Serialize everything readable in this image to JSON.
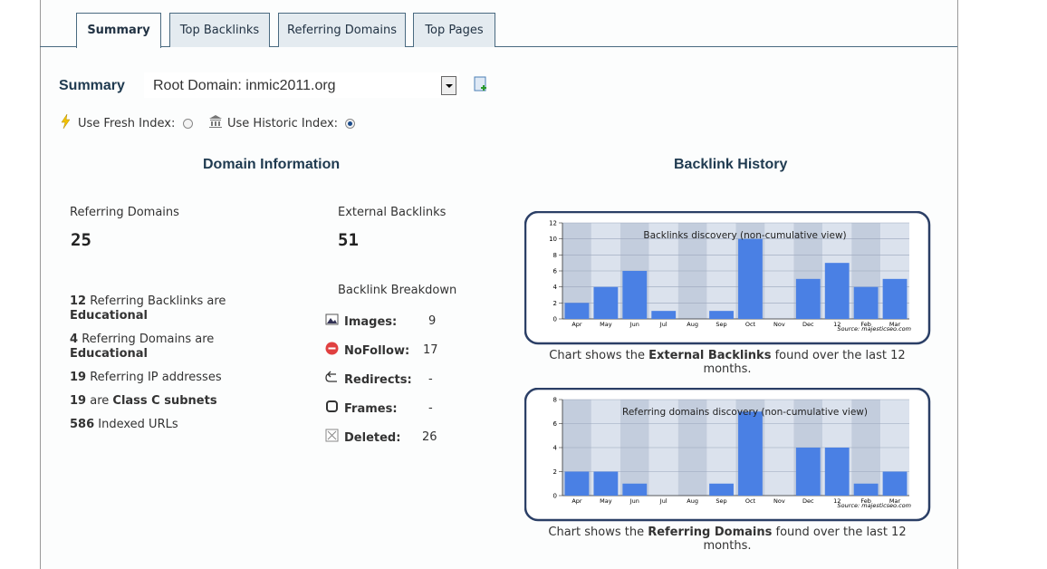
{
  "tabs": [
    "Summary",
    "Top Backlinks",
    "Referring Domains",
    "Top Pages"
  ],
  "summary_label": "Summary",
  "select": "Root Domain: inmic2011.org",
  "index_options": [
    "Use Fresh Index:",
    "Use Historic Index:"
  ],
  "domain_info": {
    "heading": "Domain Information",
    "referring_domains": {
      "label": "Referring Domains",
      "value": 25
    },
    "external_backlinks": {
      "label": "External Backlinks",
      "value": 51
    },
    "stats": [
      {
        "count": 12,
        "text": "Referring Backlinks are",
        "bold": "Educational"
      },
      {
        "count": 4,
        "text": "Referring Domains are",
        "bold": "Educational"
      },
      {
        "count": 19,
        "text": "Referring IP addresses"
      },
      {
        "count": 19,
        "text": "are",
        "bold": "Class C subnets"
      },
      {
        "count": 586,
        "text": "Indexed URLs"
      }
    ],
    "breakdown_heading": "Backlink Breakdown",
    "breakdown": [
      {
        "label": "Images:",
        "value": 9
      },
      {
        "label": "NoFollow:",
        "value": 17
      },
      {
        "label": "Redirects:",
        "value": "-"
      },
      {
        "label": "Frames:",
        "value": "-"
      },
      {
        "label": "Deleted:",
        "value": 26
      }
    ]
  },
  "history_heading": "Backlink History",
  "chart_data": [
    {
      "type": "bar",
      "title": "Backlinks discovery (non-cumulative view)",
      "categories": [
        "Apr",
        "May",
        "Jun",
        "Jul",
        "Aug",
        "Sep",
        "Oct",
        "Nov",
        "Dec",
        "12",
        "Feb",
        "Mar"
      ],
      "values": [
        2,
        4,
        6,
        1,
        0,
        1,
        10,
        0,
        5,
        7,
        4,
        5
      ],
      "color": "#4a80e4",
      "ylim": [
        0,
        12
      ],
      "yticks": [
        0,
        2,
        4,
        6,
        8,
        10,
        12
      ],
      "grid": true,
      "source": "Source: majesticseo.com",
      "caption": [
        "Chart shows the ",
        "External Backlinks",
        " found over the last 12 months."
      ]
    },
    {
      "type": "bar",
      "title": "Referring domains discovery (non-cumulative view)",
      "categories": [
        "Apr",
        "May",
        "Jun",
        "Jul",
        "Aug",
        "Sep",
        "Oct",
        "Nov",
        "Dec",
        "12",
        "Feb",
        "Mar"
      ],
      "values": [
        2,
        2,
        1,
        0,
        0,
        1,
        7,
        0,
        4,
        4,
        1,
        2
      ],
      "color": "#4a80e4",
      "ylim": [
        0,
        8
      ],
      "yticks": [
        0,
        2,
        4,
        6,
        8
      ],
      "grid": true,
      "source": "Source: majesticseo.com",
      "caption": [
        "Chart shows the ",
        "Referring Domains",
        " found over the last 12 months."
      ]
    }
  ]
}
